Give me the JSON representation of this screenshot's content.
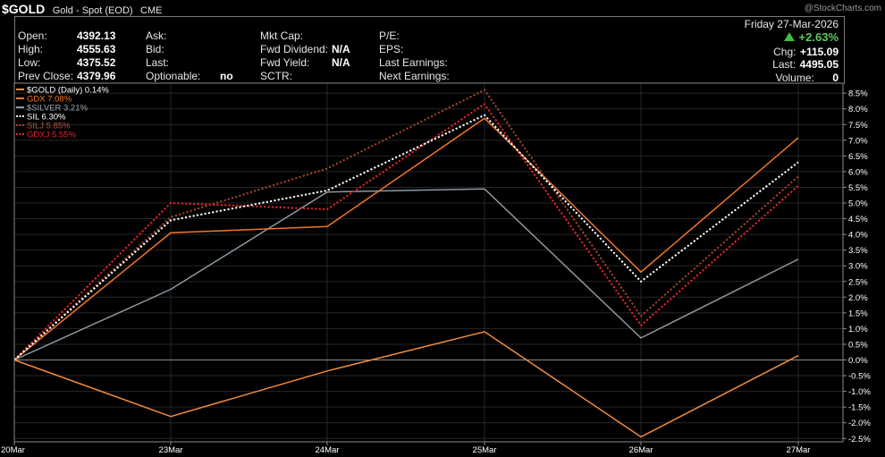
{
  "header": {
    "symbol": "$GOLD",
    "description": "Gold - Spot (EOD)",
    "exchange": "CME",
    "watermark": "@StockCharts.com",
    "date": "Friday  27-Mar-2026",
    "change_pct": "+2.63%",
    "chg_label": "Chg:",
    "chg_value": "+115.09",
    "last_label": "Last:",
    "last_value": "4495.05",
    "volume_label": "Volume:",
    "volume_value": "0"
  },
  "quote": {
    "col1": [
      {
        "label": "Open:",
        "value": "4392.13"
      },
      {
        "label": "High:",
        "value": "4555.63"
      },
      {
        "label": "Low:",
        "value": "4375.52"
      },
      {
        "label": "Prev Close:",
        "value": "4379.96"
      }
    ],
    "col2": [
      {
        "label": "Ask:",
        "value": ""
      },
      {
        "label": "Bid:",
        "value": ""
      },
      {
        "label": "Last:",
        "value": ""
      },
      {
        "label": "Optionable:",
        "value": "no"
      }
    ],
    "col3": [
      {
        "label": "Mkt Cap:",
        "value": ""
      },
      {
        "label": "Fwd Dividend:",
        "value": "N/A"
      },
      {
        "label": "Fwd Yield:",
        "value": "N/A"
      },
      {
        "label": "SCTR:",
        "value": ""
      }
    ],
    "col4": [
      {
        "label": "P/E:",
        "value": ""
      },
      {
        "label": "EPS:",
        "value": ""
      },
      {
        "label": "Last Earnings:",
        "value": ""
      },
      {
        "label": "Next Earnings:",
        "value": ""
      }
    ]
  },
  "chart_data": {
    "type": "line",
    "title": "",
    "xlabel": "",
    "ylabel": "",
    "categories": [
      "20Mar",
      "23Mar",
      "24Mar",
      "25Mar",
      "26Mar",
      "27Mar"
    ],
    "ylim": [
      -2.6,
      8.7
    ],
    "y_ticks": [
      "8.5%",
      "8.0%",
      "7.5%",
      "7.0%",
      "6.5%",
      "6.0%",
      "5.5%",
      "5.0%",
      "4.5%",
      "4.0%",
      "3.5%",
      "3.0%",
      "2.5%",
      "2.0%",
      "1.5%",
      "1.0%",
      "0.5%",
      "0.0%",
      "-0.5%",
      "-1.0%",
      "-1.5%",
      "-2.0%",
      "-2.5%"
    ],
    "legend_position": "top-left",
    "grid": true,
    "series": [
      {
        "name": "$GOLD (Daily) 0.14%",
        "color": "#f08a3c",
        "dash": "solid",
        "legend_color": "#ffffff",
        "values": [
          0,
          -1.8,
          -0.35,
          0.9,
          -2.45,
          0.14
        ]
      },
      {
        "name": "GDX 7.08%",
        "color": "#f0762a",
        "dash": "solid",
        "legend_color": "#f0762a",
        "values": [
          0,
          4.05,
          4.25,
          7.7,
          2.8,
          7.08
        ]
      },
      {
        "name": "$SILVER 3.21%",
        "color": "#8c99a3",
        "dash": "solid",
        "legend_color": "#9aa6b0",
        "values": [
          0,
          2.25,
          5.35,
          5.45,
          0.7,
          3.21
        ]
      },
      {
        "name": "SIL 6.30%",
        "color": "#ffffff",
        "dash": "dotted",
        "legend_color": "#ffffff",
        "values": [
          0,
          4.45,
          5.4,
          7.8,
          2.5,
          6.3
        ]
      },
      {
        "name": "SILJ 5.85%",
        "color": "#a0442c",
        "dash": "dotted",
        "legend_color": "#b05a3e",
        "values": [
          0,
          4.55,
          6.1,
          8.6,
          1.4,
          5.85
        ]
      },
      {
        "name": "GDXJ 5.55%",
        "color": "#e8242a",
        "dash": "dotted",
        "legend_color": "#e8242a",
        "values": [
          0,
          5.0,
          4.8,
          8.15,
          1.1,
          5.55
        ]
      }
    ]
  }
}
